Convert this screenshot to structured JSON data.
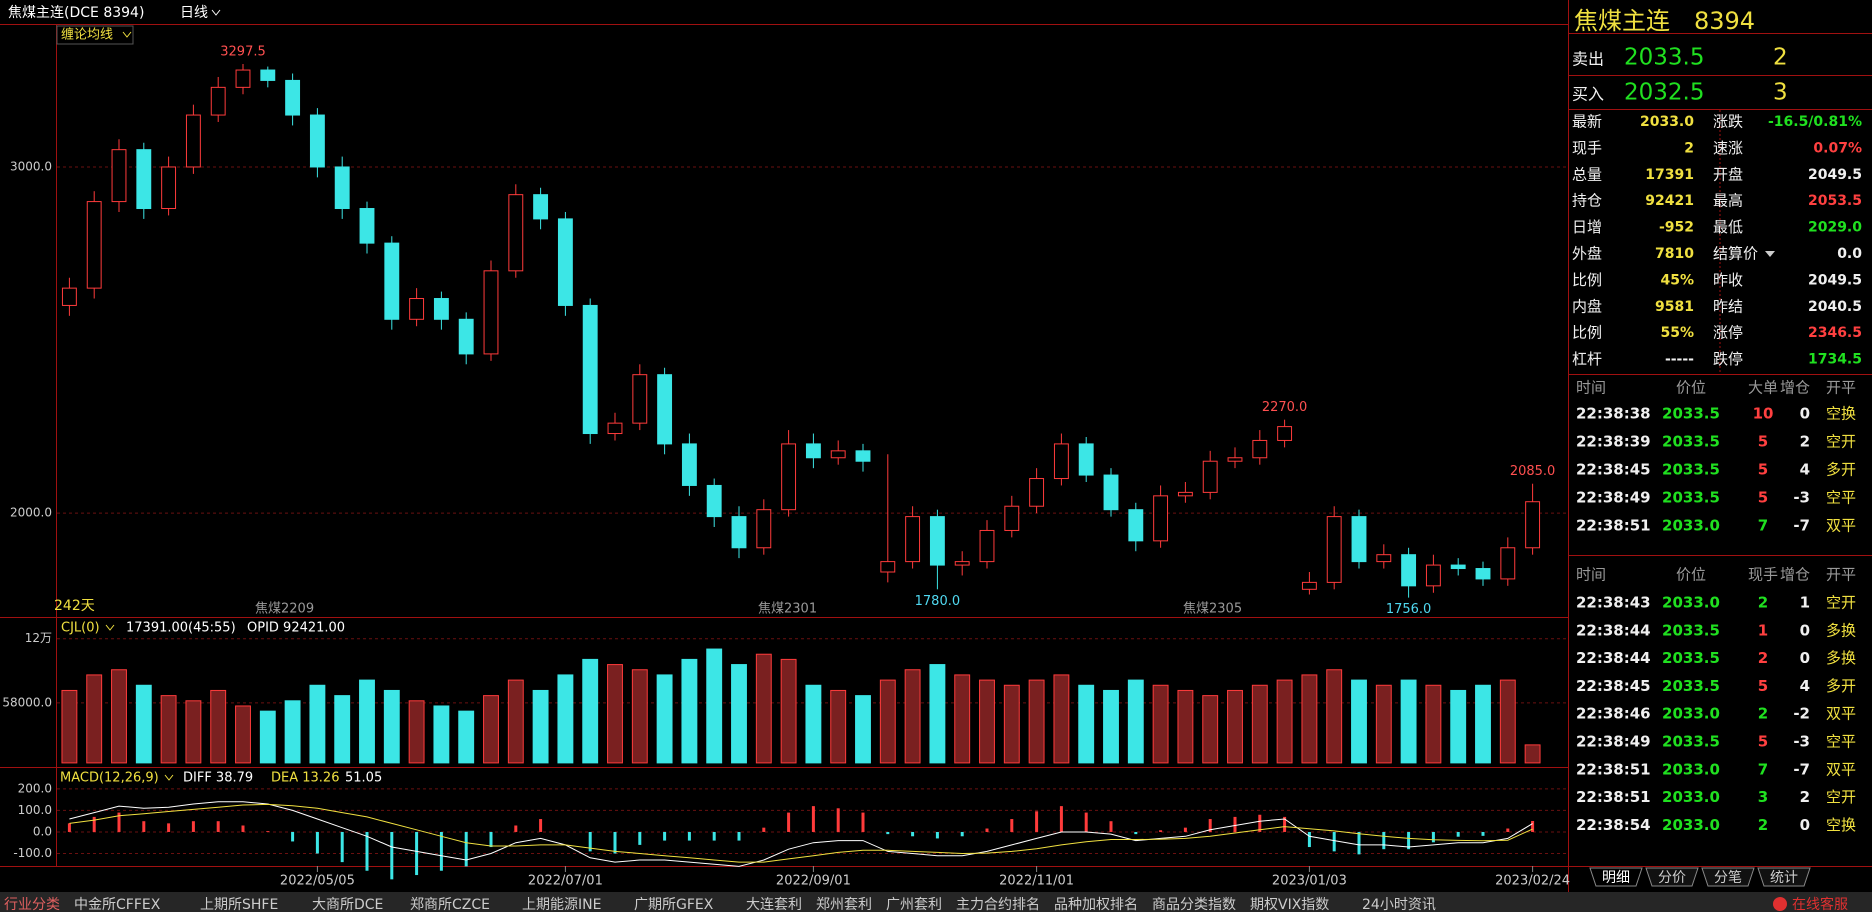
{
  "header": {
    "title": "焦煤主连(DCE 8394)",
    "period": "日线"
  },
  "chart_data": {
    "type": "candlestick",
    "indicator": "缠论均线",
    "days": "242天",
    "categories": [
      null,
      null,
      null,
      null,
      null,
      null,
      null,
      null,
      null,
      null,
      "2022/05/05",
      null,
      null,
      null,
      null,
      null,
      null,
      null,
      null,
      null,
      "2022/07/01",
      null,
      null,
      null,
      null,
      null,
      null,
      null,
      null,
      null,
      "2022/09/01",
      null,
      null,
      null,
      null,
      null,
      null,
      null,
      null,
      "2022/11/01",
      null,
      null,
      null,
      null,
      null,
      null,
      null,
      null,
      null,
      null,
      "2023/01/03",
      null,
      null,
      null,
      null,
      null,
      null,
      null,
      null,
      "2023/02/24"
    ],
    "open": [
      2600,
      2650,
      2900,
      3050,
      2880,
      3000,
      3150,
      3230,
      3280,
      3250,
      3150,
      3000,
      2880,
      2780,
      2560,
      2620,
      2560,
      2460,
      2700,
      2920,
      2850,
      2600,
      2230,
      2260,
      2400,
      2200,
      2080,
      1990,
      1900,
      2010,
      2200,
      2160,
      2180,
      1830,
      1860,
      1990,
      1850,
      1860,
      1950,
      2020,
      2100,
      2200,
      2110,
      2010,
      1920,
      2050,
      2060,
      2150,
      2160,
      2210,
      1780,
      1800,
      1990,
      1860,
      1880,
      1790,
      1850,
      1840,
      1810,
      1900
    ],
    "high": [
      2680,
      2930,
      3080,
      3070,
      3030,
      3180,
      3260,
      3297.5,
      3290,
      3270,
      3170,
      3030,
      2900,
      2800,
      2650,
      2640,
      2580,
      2730,
      2950,
      2940,
      2870,
      2620,
      2290,
      2430,
      2420,
      2230,
      2100,
      2020,
      2040,
      2240,
      2230,
      2210,
      2200,
      2170,
      2020,
      2010,
      1890,
      1980,
      2050,
      2130,
      2230,
      2220,
      2130,
      2030,
      2080,
      2090,
      2180,
      2190,
      2240,
      2270,
      1830,
      2020,
      2010,
      1910,
      1900,
      1880,
      1870,
      1860,
      1930,
      2085
    ],
    "low": [
      2570,
      2620,
      2870,
      2850,
      2860,
      2980,
      3130,
      3210,
      3230,
      3120,
      2970,
      2850,
      2750,
      2530,
      2540,
      2530,
      2430,
      2440,
      2680,
      2820,
      2570,
      2200,
      2210,
      2240,
      2170,
      2050,
      1960,
      1870,
      1880,
      1990,
      2130,
      2140,
      2120,
      1800,
      1840,
      1780,
      1820,
      1840,
      1930,
      2000,
      2080,
      2090,
      1990,
      1890,
      1900,
      2030,
      2040,
      2130,
      2140,
      2190,
      1765,
      1780,
      1840,
      1840,
      1756,
      1770,
      1820,
      1790,
      1790,
      1880
    ],
    "close": [
      2650,
      2900,
      3050,
      2880,
      3000,
      3150,
      3230,
      3280,
      3250,
      3150,
      3000,
      2880,
      2780,
      2560,
      2620,
      2560,
      2460,
      2700,
      2920,
      2850,
      2600,
      2230,
      2260,
      2400,
      2200,
      2080,
      1990,
      1900,
      2010,
      2200,
      2160,
      2180,
      2150,
      1860,
      1990,
      1850,
      1860,
      1950,
      2020,
      2100,
      2200,
      2110,
      2010,
      1920,
      2050,
      2060,
      2150,
      2160,
      2210,
      2250,
      1800,
      1990,
      1860,
      1880,
      1790,
      1850,
      1840,
      1810,
      1900,
      2033
    ],
    "ylim": [
      1700,
      3413
    ],
    "yticks": [
      {
        "value": 2000,
        "label": "2000.0"
      },
      {
        "value": 3000,
        "label": "3000.0"
      }
    ],
    "grid": true,
    "annotations": [
      "3297.5",
      "2270.0",
      "2085.0",
      "1780.0",
      "1756.0"
    ],
    "contracts": [
      "焦煤2209",
      "焦煤2301",
      "焦煤2305"
    ],
    "up_color": "#ff3b3b",
    "down_color": "#3ce6e6",
    "volume": {
      "label": "CJL(0)",
      "summary": "17391.00(45:55)",
      "opid": "OPID 92421.00",
      "values": [
        70000,
        85000,
        90000,
        75000,
        65000,
        60000,
        70000,
        55000,
        50000,
        60000,
        75000,
        65000,
        80000,
        70000,
        60000,
        55000,
        50000,
        65000,
        80000,
        70000,
        85000,
        100000,
        95000,
        90000,
        85000,
        100000,
        110000,
        95000,
        105000,
        100000,
        75000,
        70000,
        65000,
        80000,
        90000,
        95000,
        85000,
        80000,
        75000,
        80000,
        85000,
        75000,
        70000,
        80000,
        75000,
        70000,
        65000,
        70000,
        75000,
        80000,
        85000,
        90000,
        80000,
        75000,
        80000,
        75000,
        70000,
        75000,
        80000,
        17391
      ],
      "ylim": [
        -3000,
        140000
      ],
      "yticks": [
        {
          "value": 120000,
          "label": "12万"
        },
        {
          "value": 58000,
          "label": "58000.0"
        }
      ]
    },
    "macd": {
      "label": "MACD(12,26,9)",
      "diff_label": "DIFF 38.79",
      "dea_label": "DEA 13.26",
      "macd_label": "51.05",
      "diff": [
        60,
        90,
        120,
        110,
        115,
        130,
        140,
        140,
        130,
        100,
        60,
        20,
        -20,
        -70,
        -90,
        -110,
        -130,
        -100,
        -50,
        -30,
        -60,
        -120,
        -140,
        -130,
        -130,
        -140,
        -150,
        -160,
        -130,
        -80,
        -50,
        -40,
        -40,
        -90,
        -100,
        -110,
        -110,
        -90,
        -60,
        -30,
        0,
        0,
        -10,
        -40,
        -30,
        -20,
        10,
        30,
        50,
        60,
        -20,
        -40,
        -60,
        -60,
        -70,
        -60,
        -50,
        -50,
        -30,
        38.79
      ],
      "dea": [
        40,
        55,
        75,
        85,
        95,
        105,
        115,
        125,
        128,
        122,
        110,
        90,
        70,
        40,
        10,
        -20,
        -50,
        -65,
        -65,
        -60,
        -60,
        -75,
        -90,
        -100,
        -110,
        -120,
        -130,
        -140,
        -140,
        -125,
        -110,
        -95,
        -85,
        -85,
        -90,
        -95,
        -100,
        -98,
        -90,
        -78,
        -60,
        -45,
        -35,
        -35,
        -34,
        -30,
        -20,
        -5,
        10,
        25,
        15,
        5,
        -8,
        -20,
        -30,
        -36,
        -39,
        -41,
        -38,
        13.26
      ],
      "macd": [
        40,
        70,
        90,
        50,
        40,
        50,
        50,
        30,
        4,
        -44,
        -100,
        -140,
        -180,
        -220,
        -200,
        -180,
        -160,
        -70,
        30,
        60,
        0,
        -90,
        -100,
        -60,
        -40,
        -40,
        -40,
        -40,
        20,
        90,
        120,
        110,
        90,
        -10,
        -20,
        -30,
        -20,
        16,
        60,
        96,
        120,
        90,
        50,
        -10,
        8,
        20,
        60,
        70,
        80,
        70,
        -70,
        -90,
        -104,
        -80,
        -80,
        -48,
        -22,
        -18,
        16,
        51.05
      ],
      "ylim": [
        -158,
        297
      ],
      "yticks": [
        {
          "value": 200,
          "label": "200.0"
        },
        {
          "value": 100,
          "label": "100.0"
        },
        {
          "value": 0,
          "label": "0.0"
        },
        {
          "value": -100,
          "label": "-100.0"
        }
      ]
    }
  },
  "quote": {
    "name": "焦煤主连",
    "code": "8394",
    "sell": {
      "label": "卖出",
      "price": "2033.5",
      "qty": "2"
    },
    "buy": {
      "label": "买入",
      "price": "2032.5",
      "qty": "3"
    },
    "stats": [
      [
        "最新",
        "2033.0",
        "涨跌",
        "-16.5/0.81%"
      ],
      [
        "现手",
        "2",
        "速涨",
        "0.07%"
      ],
      [
        "总量",
        "17391",
        "开盘",
        "2049.5"
      ],
      [
        "持仓",
        "92421",
        "最高",
        "2053.5"
      ],
      [
        "日增",
        "-952",
        "最低",
        "2029.0"
      ],
      [
        "外盘",
        "7810",
        "结算价",
        "0.0"
      ],
      [
        "比例",
        "45%",
        "昨收",
        "2049.5"
      ],
      [
        "内盘",
        "9581",
        "昨结",
        "2040.5"
      ],
      [
        "比例",
        "55%",
        "涨停",
        "2346.5"
      ],
      [
        "杠杆",
        "-----",
        "跌停",
        "1734.5"
      ]
    ]
  },
  "big_trades": {
    "header": [
      "时间",
      "价位",
      "大单",
      "增仓",
      "开平"
    ],
    "rows": [
      [
        "22:38:38",
        "2033.5",
        "10",
        "0",
        "空换"
      ],
      [
        "22:38:39",
        "2033.5",
        "5",
        "2",
        "空开"
      ],
      [
        "22:38:45",
        "2033.5",
        "5",
        "4",
        "多开"
      ],
      [
        "22:38:49",
        "2033.5",
        "5",
        "-3",
        "空平"
      ],
      [
        "22:38:51",
        "2033.0",
        "7",
        "-7",
        "双平"
      ]
    ]
  },
  "trades": {
    "header": [
      "时间",
      "价位",
      "现手",
      "增仓",
      "开平"
    ],
    "rows": [
      [
        "22:38:43",
        "2033.0",
        "2",
        "1",
        "空开"
      ],
      [
        "22:38:44",
        "2033.5",
        "1",
        "0",
        "多换"
      ],
      [
        "22:38:44",
        "2033.5",
        "2",
        "0",
        "多换"
      ],
      [
        "22:38:45",
        "2033.5",
        "5",
        "4",
        "多开"
      ],
      [
        "22:38:46",
        "2033.0",
        "2",
        "-2",
        "双平"
      ],
      [
        "22:38:49",
        "2033.5",
        "5",
        "-3",
        "空平"
      ],
      [
        "22:38:51",
        "2033.0",
        "7",
        "-7",
        "双平"
      ],
      [
        "22:38:51",
        "2033.0",
        "3",
        "2",
        "空开"
      ],
      [
        "22:38:54",
        "2033.0",
        "2",
        "0",
        "空换"
      ]
    ]
  },
  "tabs": [
    "明细",
    "分价",
    "分笔",
    "统计"
  ],
  "footer": {
    "items": [
      "行业分类",
      "中金所CFFEX",
      "上期所SHFE",
      "大商所DCE",
      "郑商所CZCE",
      "上期能源INE",
      "广期所GFEX",
      "大连套利",
      "郑州套利",
      "广州套利",
      "主力合约排名",
      "品种加权排名",
      "商品分类指数",
      "期权VIX指数",
      "24小时资讯"
    ],
    "service": "在线客服"
  }
}
